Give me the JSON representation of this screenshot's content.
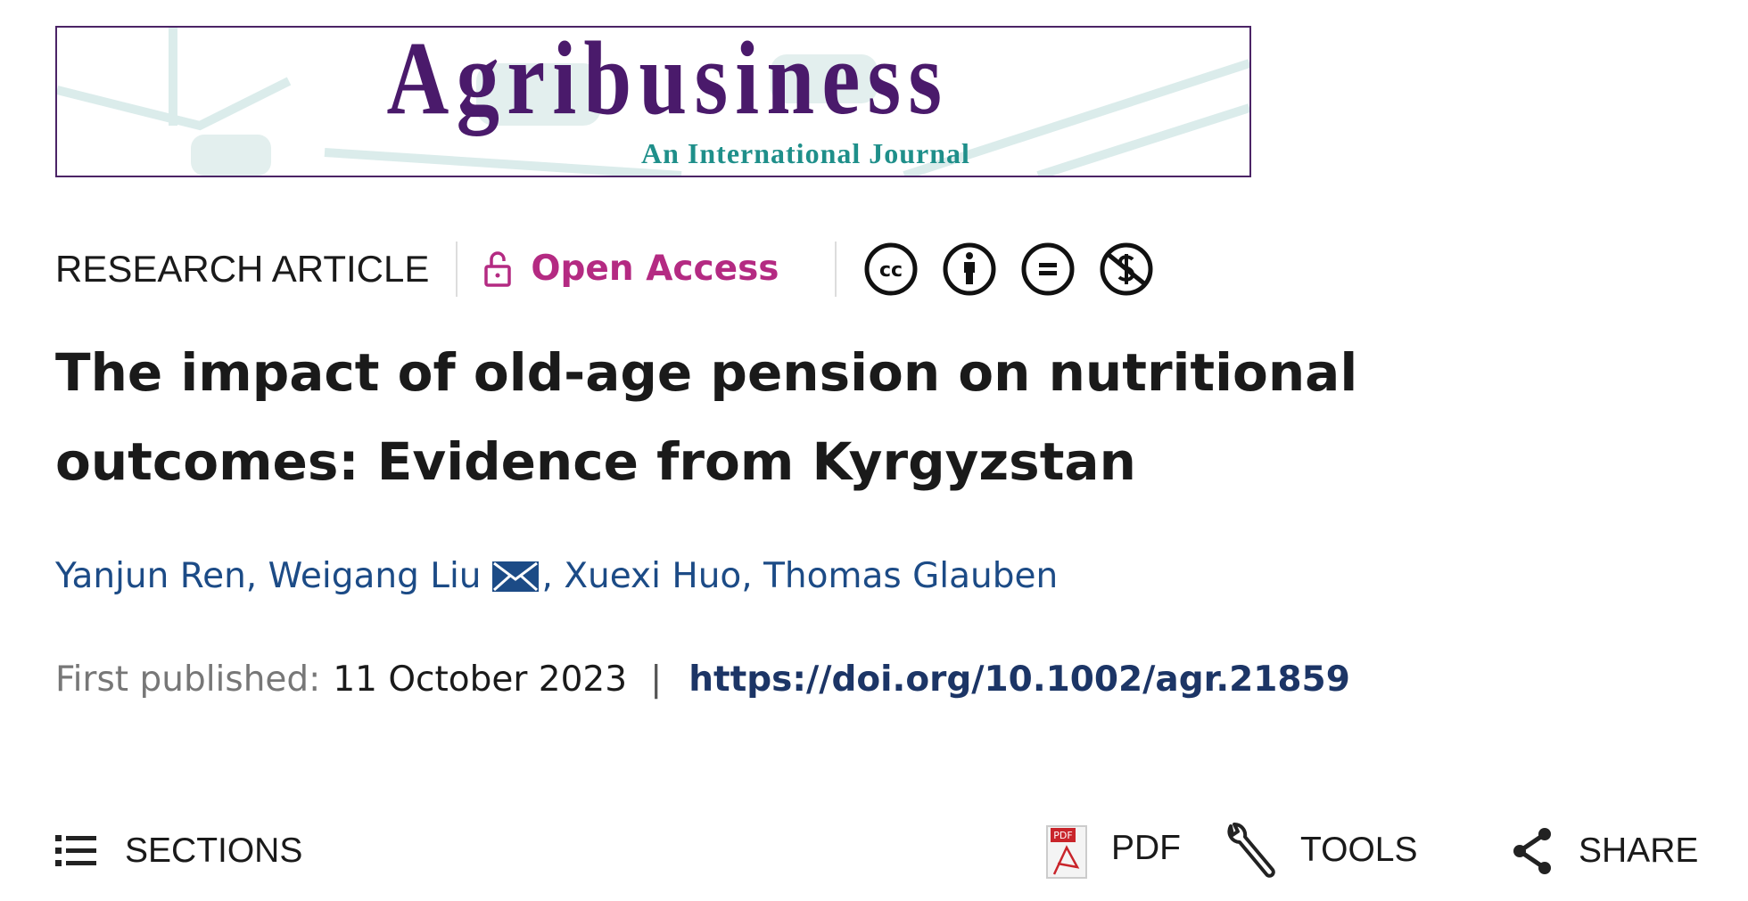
{
  "journal": {
    "name": "Agribusiness",
    "subtitle": "An International Journal",
    "border_color": "#4b2466",
    "title_color": "#4a1a6b",
    "subtitle_color": "#1f8f8a"
  },
  "meta": {
    "article_type": "RESEARCH ARTICLE",
    "access_label": "Open Access",
    "access_color": "#b42a82",
    "license_icons": [
      "cc-icon",
      "attribution-icon",
      "no-derivatives-icon",
      "non-commercial-icon"
    ],
    "cc_text": "cc"
  },
  "article": {
    "title_line1": "The impact of old-age pension on nutritional",
    "title_line2": "outcomes: Evidence from Kyrgyzstan",
    "authors": [
      "Yanjun Ren",
      "Weigang Liu",
      "Xuexi Huo",
      "Thomas Glauben"
    ],
    "author_separator": ", ",
    "first_published_label": "First published:",
    "first_published_date": "11 October 2023",
    "separator": "|",
    "doi": "https://doi.org/10.1002/agr.21859"
  },
  "toolbar": {
    "sections": "SECTIONS",
    "pdf": "PDF",
    "pdf_badge": "PDF",
    "tools": "TOOLS",
    "share": "SHARE"
  }
}
